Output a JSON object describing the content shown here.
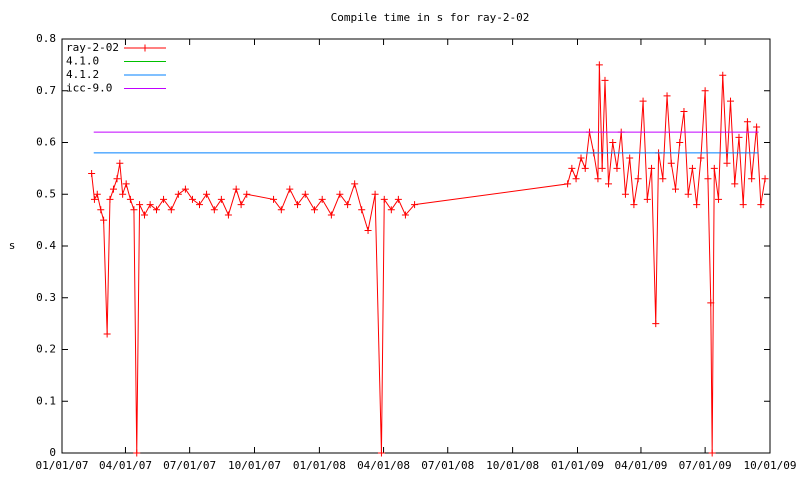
{
  "chart_data": {
    "type": "line",
    "title": "Compile time in s for ray-2-02",
    "y_label": "s",
    "xlim": [
      "01/01/07",
      "10/01/09"
    ],
    "xticks": [
      "01/01/07",
      "04/01/07",
      "07/01/07",
      "10/01/07",
      "01/01/08",
      "04/01/08",
      "07/01/08",
      "10/01/08",
      "01/01/09",
      "04/01/09",
      "07/01/09",
      "10/01/09"
    ],
    "ylim": [
      0,
      0.8
    ],
    "yticks": [
      0,
      0.1,
      0.2,
      0.3,
      0.4,
      0.5,
      0.6,
      0.7,
      0.8
    ],
    "legend": "top-left",
    "series": [
      {
        "name": "ray-2-02",
        "color": "#ff0000",
        "markers": true,
        "x": [
          "02/12/07",
          "02/16/07",
          "02/20/07",
          "02/25/07",
          "03/01/07",
          "03/06/07",
          "03/10/07",
          "03/15/07",
          "03/20/07",
          "03/24/07",
          "03/28/07",
          "04/02/07",
          "04/08/07",
          "04/13/07",
          "04/17/07",
          "04/21/07",
          "04/28/07",
          "05/06/07",
          "05/15/07",
          "05/25/07",
          "06/05/07",
          "06/15/07",
          "06/25/07",
          "07/05/07",
          "07/15/07",
          "07/25/07",
          "08/05/07",
          "08/15/07",
          "08/25/07",
          "09/05/07",
          "09/12/07",
          "09/20/07",
          "10/28/07",
          "11/08/07",
          "11/20/07",
          "12/01/07",
          "12/12/07",
          "12/25/07",
          "01/05/08",
          "01/18/08",
          "01/30/08",
          "02/10/08",
          "02/20/08",
          "03/01/08",
          "03/10/08",
          "03/20/08",
          "03/29/08",
          "04/02/08",
          "04/12/08",
          "04/22/08",
          "05/02/08",
          "05/15/08",
          "12/18/08",
          "12/24/08",
          "12/30/08",
          "01/06/09",
          "01/12/09",
          "01/18/09",
          "01/24/09",
          "01/30/09",
          "02/01/09",
          "02/05/09",
          "02/09/09",
          "02/14/09",
          "02/20/09",
          "02/26/09",
          "03/04/09",
          "03/10/09",
          "03/16/09",
          "03/22/09",
          "03/28/09",
          "04/04/09",
          "04/10/09",
          "04/16/09",
          "04/22/09",
          "04/26/09",
          "05/02/09",
          "05/08/09",
          "05/14/09",
          "05/20/09",
          "05/26/09",
          "06/01/09",
          "06/07/09",
          "06/13/09",
          "06/19/09",
          "06/25/09",
          "07/01/09",
          "07/05/09",
          "07/09/09",
          "07/11/09",
          "07/14/09",
          "07/20/09",
          "07/26/09",
          "08/01/09",
          "08/06/09",
          "08/12/09",
          "08/18/09",
          "08/24/09",
          "08/30/09",
          "09/05/09",
          "09/12/09",
          "09/18/09",
          "09/24/09"
        ],
        "values": [
          0.54,
          0.49,
          0.5,
          0.47,
          0.45,
          0.23,
          0.49,
          0.51,
          0.53,
          0.56,
          0.5,
          0.52,
          0.49,
          0.47,
          0.0,
          0.48,
          0.46,
          0.48,
          0.47,
          0.49,
          0.47,
          0.5,
          0.51,
          0.49,
          0.48,
          0.5,
          0.47,
          0.49,
          0.46,
          0.51,
          0.48,
          0.5,
          0.49,
          0.47,
          0.51,
          0.48,
          0.5,
          0.47,
          0.49,
          0.46,
          0.5,
          0.48,
          0.52,
          0.47,
          0.43,
          0.5,
          0.0,
          0.49,
          0.47,
          0.49,
          0.46,
          0.48,
          0.52,
          0.55,
          0.53,
          0.57,
          0.55,
          0.62,
          0.58,
          0.53,
          0.75,
          0.55,
          0.72,
          0.52,
          0.6,
          0.55,
          0.62,
          0.5,
          0.57,
          0.48,
          0.53,
          0.68,
          0.49,
          0.55,
          0.25,
          0.58,
          0.53,
          0.69,
          0.56,
          0.51,
          0.6,
          0.66,
          0.5,
          0.55,
          0.48,
          0.57,
          0.7,
          0.53,
          0.29,
          0.0,
          0.55,
          0.49,
          0.73,
          0.56,
          0.68,
          0.52,
          0.61,
          0.48,
          0.64,
          0.53,
          0.63,
          0.48,
          0.53
        ]
      },
      {
        "name": "4.1.0",
        "color": "#00c000",
        "x": [],
        "values": []
      },
      {
        "name": "4.1.2",
        "color": "#0080ff",
        "x": [
          "02/15/07",
          "09/15/09"
        ],
        "values": [
          0.58,
          0.58
        ]
      },
      {
        "name": "icc-9.0",
        "color": "#c000ff",
        "x": [
          "02/15/07",
          "09/15/09"
        ],
        "values": [
          0.62,
          0.62
        ]
      }
    ]
  }
}
